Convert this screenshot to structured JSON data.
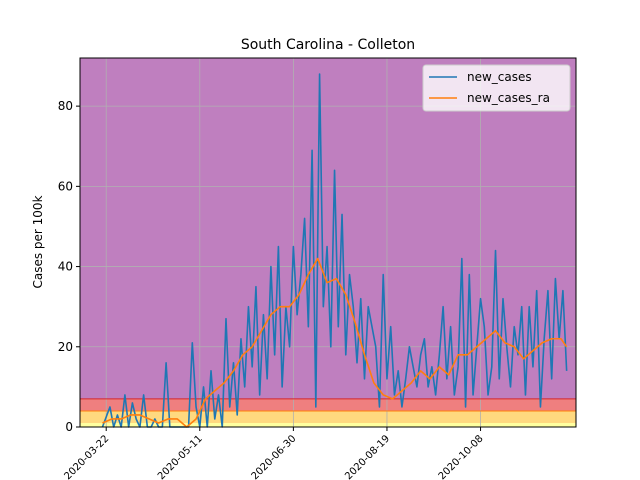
{
  "chart_data": {
    "type": "line",
    "title": "South Carolina - Colleton",
    "xlabel": "",
    "ylabel": "Cases per 100k",
    "x_start": "2020-03-08",
    "x_end": "2020-11-28",
    "xlim": [
      "2020-03-08",
      "2020-11-28"
    ],
    "ylim": [
      0,
      92
    ],
    "grid": true,
    "legend_position": "top-right",
    "xticks": [
      "2020-03-22",
      "2020-05-11",
      "2020-06-30",
      "2020-08-19",
      "2020-10-08"
    ],
    "yticks": [
      0,
      20,
      40,
      60,
      80
    ],
    "bands": [
      {
        "from": 7,
        "to": 92,
        "color": "#bf7fbf"
      },
      {
        "from": 4,
        "to": 7,
        "color": "#ef7f7f"
      },
      {
        "from": 1,
        "to": 4,
        "color": "#ffd97f"
      },
      {
        "from": 0,
        "to": 1,
        "color": "#ffff9f"
      }
    ],
    "threshold_lines": [
      {
        "value": 7,
        "color": "#d62728"
      },
      {
        "value": 4,
        "color": "#ff7f0e"
      }
    ],
    "series": [
      {
        "name": "new_cases",
        "color": "#1f77b4",
        "dates": [
          "2020-03-20",
          "2020-03-24",
          "2020-03-26",
          "2020-03-28",
          "2020-03-30",
          "2020-04-01",
          "2020-04-03",
          "2020-04-05",
          "2020-04-07",
          "2020-04-09",
          "2020-04-11",
          "2020-04-13",
          "2020-04-15",
          "2020-04-17",
          "2020-04-19",
          "2020-04-21",
          "2020-04-23",
          "2020-04-25",
          "2020-04-27",
          "2020-04-29",
          "2020-05-01",
          "2020-05-03",
          "2020-05-05",
          "2020-05-07",
          "2020-05-09",
          "2020-05-11",
          "2020-05-13",
          "2020-05-15",
          "2020-05-17",
          "2020-05-19",
          "2020-05-21",
          "2020-05-23",
          "2020-05-25",
          "2020-05-27",
          "2020-05-29",
          "2020-05-31",
          "2020-06-02",
          "2020-06-04",
          "2020-06-06",
          "2020-06-08",
          "2020-06-10",
          "2020-06-12",
          "2020-06-14",
          "2020-06-16",
          "2020-06-18",
          "2020-06-20",
          "2020-06-22",
          "2020-06-24",
          "2020-06-26",
          "2020-06-28",
          "2020-06-30",
          "2020-07-02",
          "2020-07-04",
          "2020-07-06",
          "2020-07-08",
          "2020-07-10",
          "2020-07-12",
          "2020-07-14",
          "2020-07-16",
          "2020-07-18",
          "2020-07-20",
          "2020-07-22",
          "2020-07-24",
          "2020-07-26",
          "2020-07-28",
          "2020-07-30",
          "2020-08-01",
          "2020-08-03",
          "2020-08-05",
          "2020-08-07",
          "2020-08-09",
          "2020-08-11",
          "2020-08-13",
          "2020-08-15",
          "2020-08-17",
          "2020-08-19",
          "2020-08-21",
          "2020-08-23",
          "2020-08-25",
          "2020-08-27",
          "2020-08-29",
          "2020-08-31",
          "2020-09-02",
          "2020-09-04",
          "2020-09-06",
          "2020-09-08",
          "2020-09-10",
          "2020-09-12",
          "2020-09-14",
          "2020-09-16",
          "2020-09-18",
          "2020-09-20",
          "2020-09-22",
          "2020-09-24",
          "2020-09-26",
          "2020-09-28",
          "2020-09-30",
          "2020-10-02",
          "2020-10-04",
          "2020-10-06",
          "2020-10-08",
          "2020-10-10",
          "2020-10-12",
          "2020-10-14",
          "2020-10-16",
          "2020-10-18",
          "2020-10-20",
          "2020-10-22",
          "2020-10-24",
          "2020-10-26",
          "2020-10-28",
          "2020-10-30",
          "2020-11-01",
          "2020-11-03",
          "2020-11-05",
          "2020-11-07",
          "2020-11-09",
          "2020-11-11",
          "2020-11-13",
          "2020-11-15",
          "2020-11-17",
          "2020-11-19",
          "2020-11-21",
          "2020-11-23"
        ],
        "values": [
          0,
          5,
          0,
          3,
          0,
          8,
          0,
          6,
          2,
          0,
          8,
          0,
          0,
          2,
          0,
          0,
          16,
          0,
          0,
          0,
          0,
          0,
          0,
          21,
          5,
          0,
          10,
          0,
          14,
          2,
          8,
          0,
          27,
          5,
          16,
          3,
          22,
          10,
          30,
          15,
          35,
          8,
          28,
          12,
          40,
          18,
          45,
          10,
          30,
          20,
          45,
          28,
          38,
          52,
          25,
          69,
          5,
          88,
          30,
          45,
          20,
          64,
          25,
          53,
          18,
          38,
          30,
          16,
          32,
          12,
          30,
          25,
          20,
          5,
          38,
          12,
          25,
          8,
          14,
          5,
          12,
          20,
          15,
          10,
          18,
          22,
          10,
          15,
          8,
          18,
          30,
          12,
          25,
          8,
          15,
          42,
          5,
          38,
          8,
          20,
          32,
          25,
          8,
          15,
          44,
          12,
          32,
          20,
          10,
          25,
          18,
          30,
          8,
          30,
          15,
          34,
          5,
          22,
          34,
          12,
          37,
          22,
          34,
          14
        ],
        "dashed": false
      },
      {
        "name": "new_cases_ra",
        "color": "#ff7f0e",
        "dates": [
          "2020-03-20",
          "2020-03-25",
          "2020-03-30",
          "2020-04-04",
          "2020-04-09",
          "2020-04-14",
          "2020-04-19",
          "2020-04-24",
          "2020-04-29",
          "2020-05-04",
          "2020-05-09",
          "2020-05-14",
          "2020-05-19",
          "2020-05-24",
          "2020-05-29",
          "2020-06-03",
          "2020-06-08",
          "2020-06-13",
          "2020-06-18",
          "2020-06-23",
          "2020-06-28",
          "2020-07-03",
          "2020-07-08",
          "2020-07-13",
          "2020-07-18",
          "2020-07-23",
          "2020-07-28",
          "2020-08-02",
          "2020-08-07",
          "2020-08-12",
          "2020-08-17",
          "2020-08-22",
          "2020-08-27",
          "2020-09-01",
          "2020-09-06",
          "2020-09-11",
          "2020-09-16",
          "2020-09-21",
          "2020-09-26",
          "2020-10-01",
          "2020-10-06",
          "2020-10-11",
          "2020-10-16",
          "2020-10-21",
          "2020-10-26",
          "2020-10-31",
          "2020-11-05",
          "2020-11-10",
          "2020-11-15",
          "2020-11-20",
          "2020-11-23"
        ],
        "values": [
          1,
          2,
          2,
          3,
          3,
          2,
          1,
          2,
          2,
          0,
          2,
          7,
          9,
          11,
          14,
          18,
          20,
          24,
          28,
          30,
          30,
          33,
          38,
          42,
          36,
          37,
          33,
          26,
          18,
          11,
          8,
          7,
          9,
          11,
          14,
          12,
          15,
          13,
          18,
          18,
          20,
          22,
          24,
          21,
          20,
          17,
          19,
          21,
          22,
          22,
          20
        ]
      }
    ]
  }
}
